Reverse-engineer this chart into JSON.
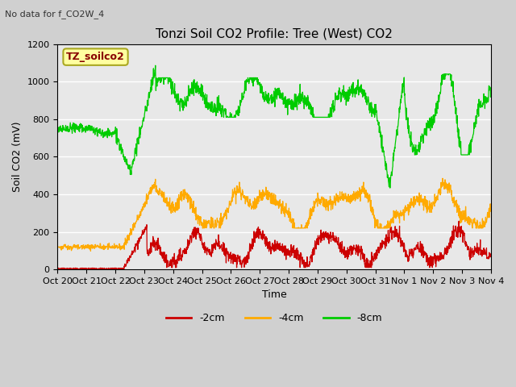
{
  "title": "Tonzi Soil CO2 Profile: Tree (West) CO2",
  "subtitle": "No data for f_CO2W_4",
  "ylabel": "Soil CO2 (mV)",
  "xlabel": "Time",
  "ylim": [
    0,
    1200
  ],
  "plot_bg_color": "#e8e8e8",
  "fig_bg_color": "#d0d0d0",
  "legend_label": "TZ_soilco2",
  "legend_box_facecolor": "#ffffa0",
  "legend_box_edgecolor": "#aaa820",
  "series_colors": {
    "2cm": "#cc0000",
    "4cm": "#ffaa00",
    "8cm": "#00cc00"
  },
  "xtick_labels": [
    "Oct 20",
    "Oct 21",
    "Oct 22",
    "Oct 23",
    "Oct 24",
    "Oct 25",
    "Oct 26",
    "Oct 27",
    "Oct 28",
    "Oct 29",
    "Oct 30",
    "Oct 31",
    "Nov 1",
    "Nov 2",
    "Nov 3",
    "Nov 4"
  ],
  "ytick_vals": [
    0,
    200,
    400,
    600,
    800,
    1000,
    1200
  ],
  "title_fontsize": 11,
  "subtitle_fontsize": 8,
  "axis_label_fontsize": 9,
  "tick_fontsize": 8,
  "legend_fontsize": 9
}
